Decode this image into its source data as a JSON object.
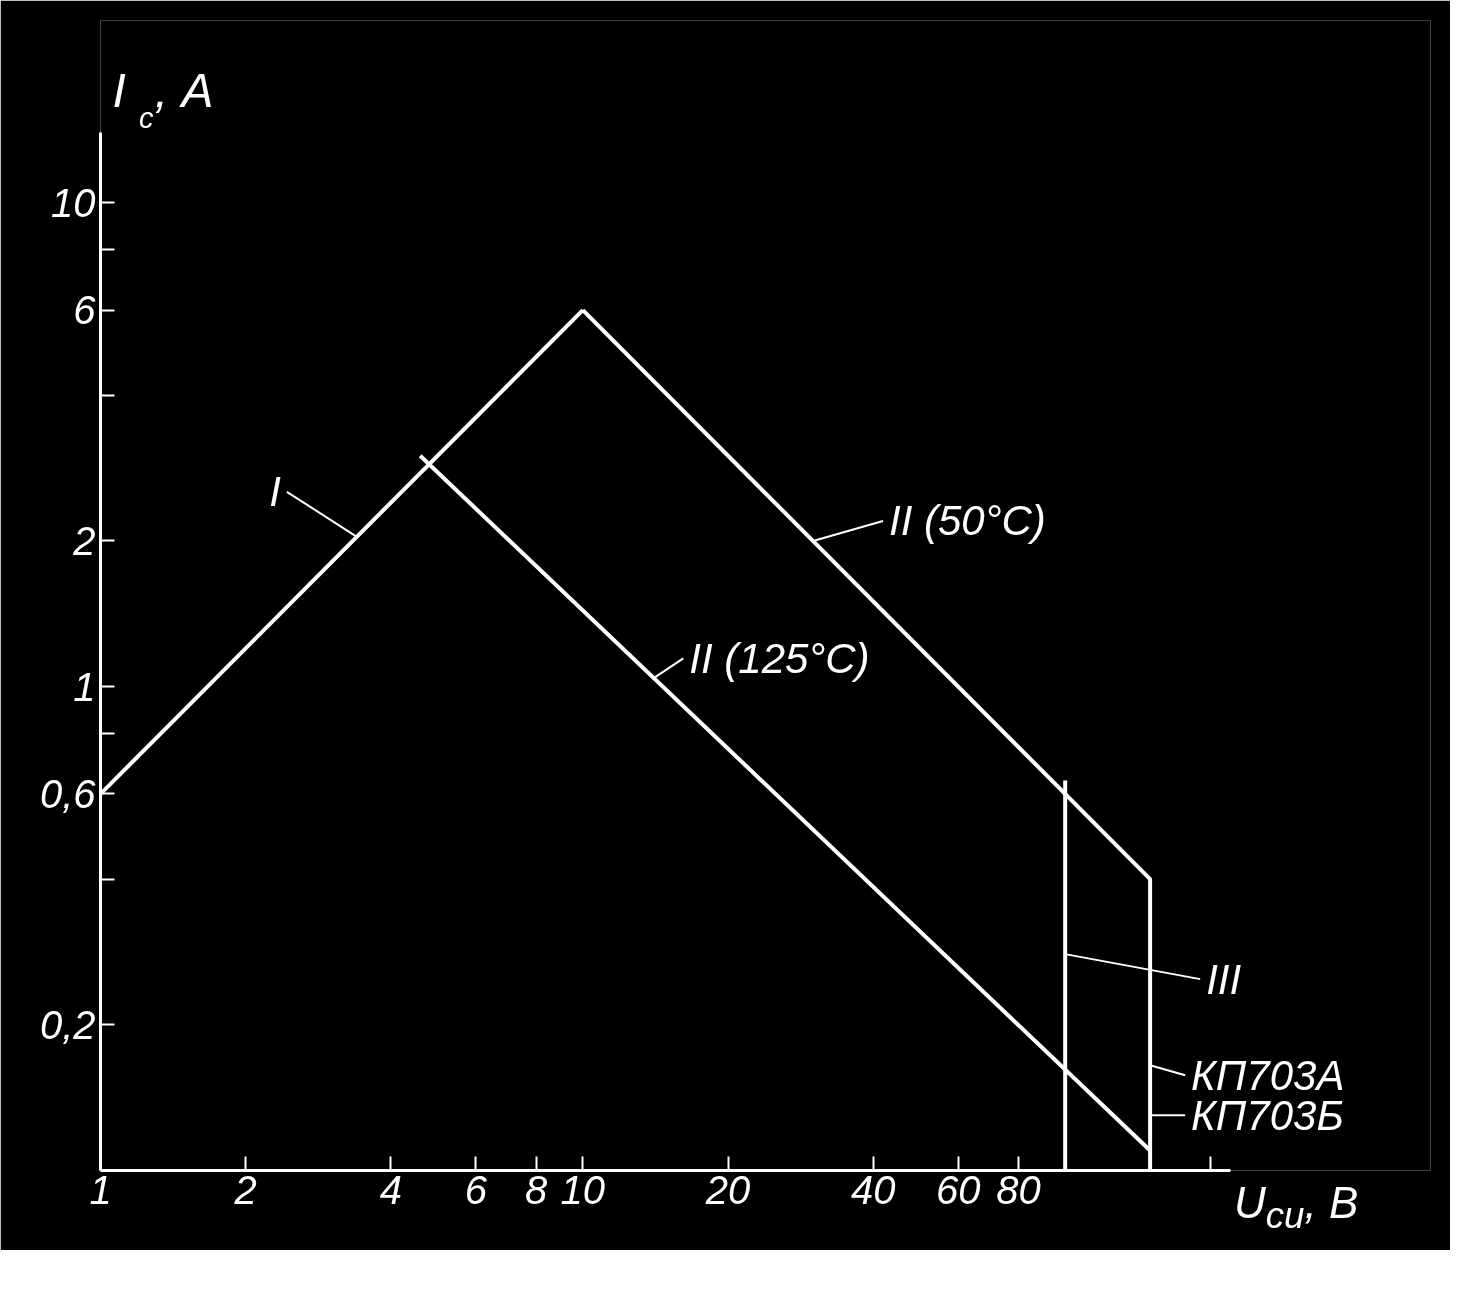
{
  "chart_data": {
    "type": "line",
    "xlabel": "U$_{си}$, В",
    "ylabel": "I$_{с}$, А",
    "log": "xy",
    "line_style": "solid",
    "xlim": [
      1,
      220
    ],
    "ylim": [
      0.1,
      14
    ],
    "xticks": [
      1,
      2,
      4,
      6,
      8,
      10,
      20,
      40,
      60,
      80,
      {
        "value": 200,
        "label": null
      }
    ],
    "yticks": [
      {
        "value": 0.2,
        "label": "0,2"
      },
      {
        "value": 0.4,
        "label": null
      },
      {
        "value": 0.6,
        "label": "0,6"
      },
      {
        "value": 0.8,
        "label": null
      },
      1,
      2,
      {
        "value": 4,
        "label": null
      },
      6,
      {
        "value": 8,
        "label": null
      },
      10
    ],
    "series": [
      {
        "color": "#ffffff",
        "x": [
          1,
          10
        ],
        "values": [
          0.6,
          6
        ]
      },
      {
        "color": "#ffffff",
        "x": [
          10,
          150,
          150
        ],
        "values": [
          6,
          0.4,
          0.1
        ]
      },
      {
        "color": "#ffffff",
        "x": [
          4.6,
          150
        ],
        "values": [
          3,
          0.11
        ]
      },
      {
        "color": "#ffffff",
        "x": [
          100,
          100
        ],
        "values": [
          0.64,
          0.1
        ]
      }
    ],
    "annotations": [
      {
        "text": "I",
        "x": 3.4,
        "y": 2.04
      },
      {
        "text": "II (50°C)",
        "x": 30,
        "y": 2
      },
      {
        "text": "II (125°C)",
        "x": 14,
        "y": 1.04
      },
      {
        "text": "III",
        "x": 100,
        "y": 0.28
      },
      {
        "text": "КП703А",
        "x": 150,
        "y": 0.165
      },
      {
        "text": "КП703Б",
        "x": 150,
        "y": 0.13
      }
    ]
  }
}
